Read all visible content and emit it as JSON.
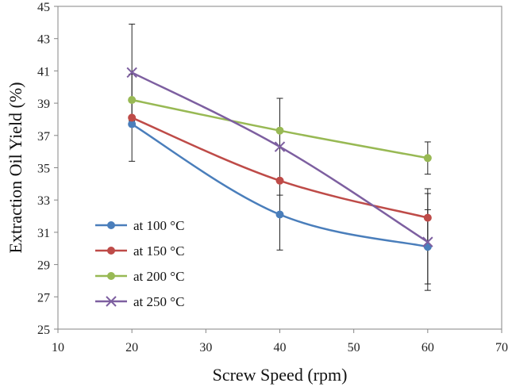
{
  "chart_data": {
    "type": "line",
    "xlabel": "Screw Speed (rpm)",
    "ylabel": "Extraction  Oil Yield  (%)",
    "xlim": [
      10,
      70
    ],
    "ylim": [
      25,
      45
    ],
    "xticks": [
      10,
      20,
      30,
      40,
      50,
      60,
      70
    ],
    "yticks": [
      25,
      27,
      29,
      31,
      33,
      35,
      37,
      39,
      41,
      43,
      45
    ],
    "x_tick_labels": [
      "10",
      "20",
      "30",
      "40",
      "50",
      "60",
      "70"
    ],
    "y_tick_labels": [
      "25",
      "27",
      "29",
      "31",
      "33",
      "35",
      "37",
      "39",
      "41",
      "43",
      "45"
    ],
    "grid": false,
    "legend_position": "bottom-left",
    "x": [
      20,
      40,
      60
    ],
    "series": [
      {
        "name": "at 100 °C",
        "color": "#4a7ebb",
        "marker": "circle",
        "values": [
          37.7,
          32.1,
          30.1
        ],
        "error": [
          null,
          2.2,
          2.3
        ]
      },
      {
        "name": "at 150 °C",
        "color": "#be4b48",
        "marker": "circle",
        "values": [
          38.1,
          34.2,
          31.9
        ],
        "error": [
          2.7,
          null,
          1.8
        ]
      },
      {
        "name": "at  200 °C",
        "color": "#98b954",
        "marker": "circle",
        "values": [
          39.2,
          37.3,
          35.6
        ],
        "error": [
          null,
          null,
          1.0
        ]
      },
      {
        "name": "at  250 °C",
        "color": "#7d5fa0",
        "marker": "x",
        "values": [
          40.9,
          36.3,
          30.4
        ],
        "error": [
          3.0,
          3.0,
          3.0
        ]
      }
    ]
  }
}
